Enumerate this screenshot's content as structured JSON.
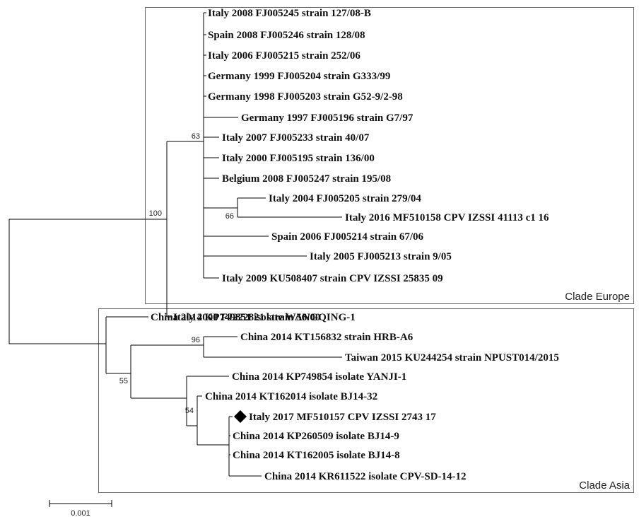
{
  "tree": {
    "leaves": [
      {
        "id": "L1",
        "text": "Italy 2008 FJ005245 strain 127/08-B"
      },
      {
        "id": "L2",
        "text": "Spain 2008 FJ005246 strain 128/08"
      },
      {
        "id": "L3",
        "text": "Italy 2006 FJ005215 strain 252/06"
      },
      {
        "id": "L4",
        "text": "Germany 1999 FJ005204 strain G333/99"
      },
      {
        "id": "L5",
        "text": "Germany 1998 FJ005203 strain G52-9/2-98"
      },
      {
        "id": "L6",
        "text": "Germany 1997 FJ005196 strain G7/97"
      },
      {
        "id": "L7",
        "text": "Italy 2007 FJ005233 strain 40/07"
      },
      {
        "id": "L8",
        "text": "Italy 2000 FJ005195 strain 136/00"
      },
      {
        "id": "L9",
        "text": "Belgium 2008 FJ005247 strain 195/08"
      },
      {
        "id": "L10",
        "text": "Italy 2004 FJ005205 strain 279/04"
      },
      {
        "id": "L11",
        "text": "Italy 2016 MF510158 CPV IZSSI 41113 c1 16"
      },
      {
        "id": "L12",
        "text": "Spain 2006 FJ005214 strain 67/06"
      },
      {
        "id": "L13",
        "text": "Italy 2005 FJ005213 strain 9/05"
      },
      {
        "id": "L14",
        "text": "Italy 2009 KU508407 strain CPV IZSSI 25835 09"
      },
      {
        "id": "L15",
        "text": "Italy 2000 FJ222821 strain 56/00"
      },
      {
        "id": "L16",
        "text": "China 2014 KP749851 isolate WANGQING-1"
      },
      {
        "id": "L17",
        "text": "China 2014 KT156832 strain HRB-A6"
      },
      {
        "id": "L18",
        "text": "Taiwan 2015 KU244254 strain NPUST014/2015"
      },
      {
        "id": "L19",
        "text": "China 2014 KP749854 isolate YANJI-1"
      },
      {
        "id": "L20",
        "text": "China 2014 KT162014 isolate BJ14-32"
      },
      {
        "id": "L21",
        "text": "Italy 2017 MF510157 CPV IZSSI 2743 17",
        "marker": "diamond"
      },
      {
        "id": "L22",
        "text": "China 2014 KP260509 isolate BJ14-9"
      },
      {
        "id": "L23",
        "text": "China 2014 KT162005 isolate BJ14-8"
      },
      {
        "id": "L24",
        "text": "China 2014 KR611522 isolate CPV-SD-14-12"
      }
    ],
    "bootstrap": {
      "europe_root": "100",
      "europe_inner": "63",
      "italy_pair": "66",
      "asia_root": "55",
      "asia_pair": "96",
      "asia_inner": "54"
    },
    "clades": {
      "europe": "Clade Europe",
      "asia": "Clade Asia"
    },
    "scale_bar": {
      "label": "0.001"
    }
  }
}
